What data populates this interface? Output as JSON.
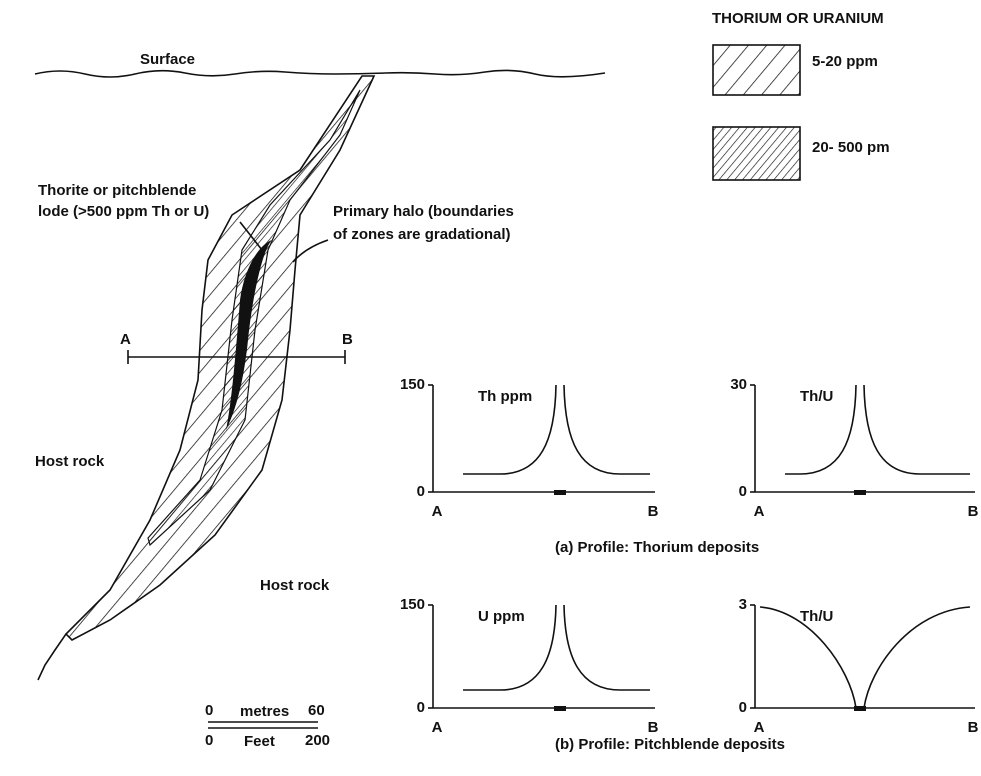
{
  "legend": {
    "title": "THORIUM OR URANIUM",
    "items": [
      "5-20 ppm",
      "20- 500 pm"
    ]
  },
  "section": {
    "surface": "Surface",
    "lode": [
      "Thorite or pitchblende",
      "lode (>500 ppm Th or U)"
    ],
    "halo": [
      "Primary halo (boundaries",
      "of zones are gradational)"
    ],
    "section_ends": [
      "A",
      "B"
    ],
    "host_rock": [
      "Host rock",
      "Host rock"
    ]
  },
  "scale": {
    "top": [
      "0",
      "metres",
      "60"
    ],
    "bottom": [
      "0",
      "Feet",
      "200"
    ]
  },
  "profiles": [
    {
      "caption": "(a) Profile: Thorium deposits",
      "panels": [
        {
          "label": "Th ppm",
          "yticks": [
            0,
            150
          ],
          "x_ends": [
            "A",
            "B"
          ]
        },
        {
          "label": "Th/U",
          "yticks": [
            0,
            30
          ],
          "x_ends": [
            "A",
            "B"
          ]
        }
      ]
    },
    {
      "caption": "(b) Profile: Pitchblende deposits",
      "panels": [
        {
          "label": "U ppm",
          "yticks": [
            0,
            150
          ],
          "x_ends": [
            "A",
            "B"
          ]
        },
        {
          "label": "Th/U",
          "yticks": [
            0,
            3
          ],
          "x_ends": [
            "A",
            "B"
          ]
        }
      ]
    }
  ]
}
